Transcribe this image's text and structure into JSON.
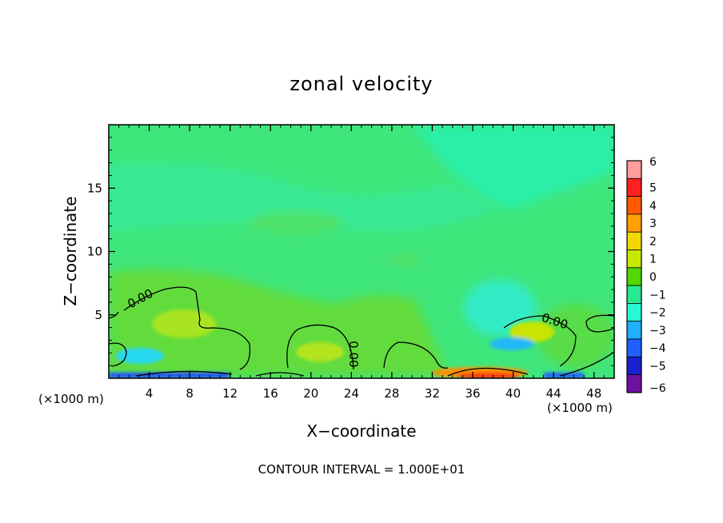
{
  "chart_data": {
    "type": "heatmap",
    "title": "zonal velocity",
    "xlabel": "X−coordinate",
    "ylabel": "Z−coordinate",
    "x_unit_left": "(×1000 m)",
    "x_unit_right": "(×1000 m)",
    "footer": "CONTOUR INTERVAL = 1.000E+01",
    "xlim": [
      0,
      50
    ],
    "ylim": [
      0,
      20
    ],
    "x_ticks": [
      4,
      8,
      12,
      16,
      20,
      24,
      28,
      32,
      36,
      40,
      44,
      48
    ],
    "y_ticks": [
      5,
      10,
      15
    ],
    "colorbar": {
      "levels": [
        6,
        5,
        4,
        3,
        2,
        1,
        0,
        -1,
        -2,
        -3,
        -4,
        -5,
        -6
      ],
      "labels": [
        "6",
        "5",
        "4",
        "3",
        "2",
        "1",
        "0",
        "−1",
        "−2",
        "−3",
        "−4",
        "−5",
        "−6"
      ],
      "colors": [
        "#ff9d9d",
        "#ff2020",
        "#ff5a00",
        "#ffa000",
        "#f2d800",
        "#c8e800",
        "#50d800",
        "#28e890",
        "#28f8d8",
        "#20b0ff",
        "#2060ff",
        "#1820d0",
        "#7010a0"
      ]
    },
    "contour_labels": [
      {
        "text": "0.00",
        "x": 3.3,
        "y": 6.0
      },
      {
        "text": "0.00",
        "x": 44.0,
        "y": 4.2
      },
      {
        "text": "0.00",
        "x": 23.8,
        "y": 1.9
      }
    ]
  }
}
